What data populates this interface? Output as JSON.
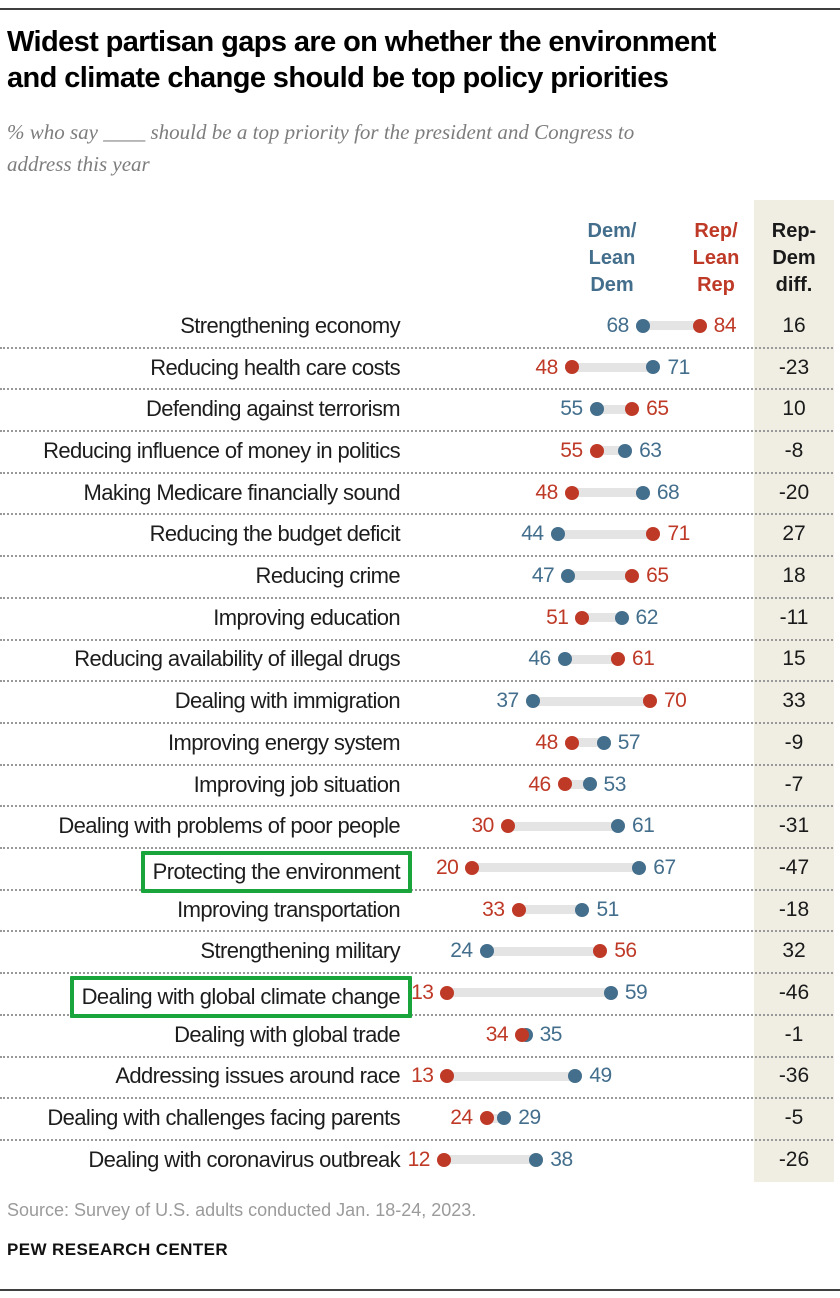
{
  "header": {
    "title": "Widest partisan gaps are on whether the environment\nand climate change should be top policy priorities",
    "subtitle": "% who say ____ should be a top priority for the president and Congress to\naddress this year"
  },
  "columns": {
    "dem": "Dem/\nLean\nDem",
    "rep": "Rep/\nLean\nRep",
    "diff": "Rep-\nDem\ndiff."
  },
  "chart_data": {
    "type": "scatter",
    "variant": "dumbbell-dot-plot",
    "categories": [
      "Strengthening economy",
      "Reducing health care costs",
      "Defending against terrorism",
      "Reducing influence of money in politics",
      "Making Medicare financially sound",
      "Reducing the budget deficit",
      "Reducing crime",
      "Improving education",
      "Reducing availability of illegal drugs",
      "Dealing with immigration",
      "Improving energy system",
      "Improving job situation",
      "Dealing with problems of poor people",
      "Protecting the environment",
      "Improving transportation",
      "Strengthening military",
      "Dealing with global climate change",
      "Dealing with global trade",
      "Addressing issues around race",
      "Dealing with challenges facing parents",
      "Dealing with coronavirus outbreak"
    ],
    "series": [
      {
        "name": "Dem/Lean Dem",
        "color": "#436e8c",
        "values": [
          68,
          71,
          55,
          63,
          68,
          44,
          47,
          62,
          46,
          37,
          57,
          53,
          61,
          67,
          51,
          24,
          59,
          35,
          49,
          29,
          38
        ]
      },
      {
        "name": "Rep/Lean Rep",
        "color": "#bf3927",
        "values": [
          84,
          48,
          65,
          55,
          48,
          71,
          65,
          51,
          61,
          70,
          48,
          46,
          30,
          20,
          33,
          56,
          13,
          34,
          13,
          24,
          12
        ]
      }
    ],
    "diff": [
      16,
      -23,
      10,
      -8,
      -20,
      27,
      18,
      -11,
      15,
      33,
      -9,
      -7,
      -31,
      -47,
      -18,
      32,
      -46,
      -1,
      -36,
      -5,
      -26
    ],
    "highlighted": [
      "Protecting the environment",
      "Dealing with global climate change"
    ],
    "xlim": [
      0,
      100
    ],
    "legend_position": "top",
    "grid": "dotted-row-separators"
  },
  "colors": {
    "dem": "#436e8c",
    "rep": "#bf3927",
    "highlight_box": "#1aa53c",
    "diff_column_bg": "#f0eee3",
    "track": "#e4e4e4",
    "separator": "#999999"
  },
  "footer": {
    "source": "Source: Survey of U.S. adults conducted Jan. 18-24, 2023.",
    "brand": "PEW RESEARCH CENTER"
  }
}
